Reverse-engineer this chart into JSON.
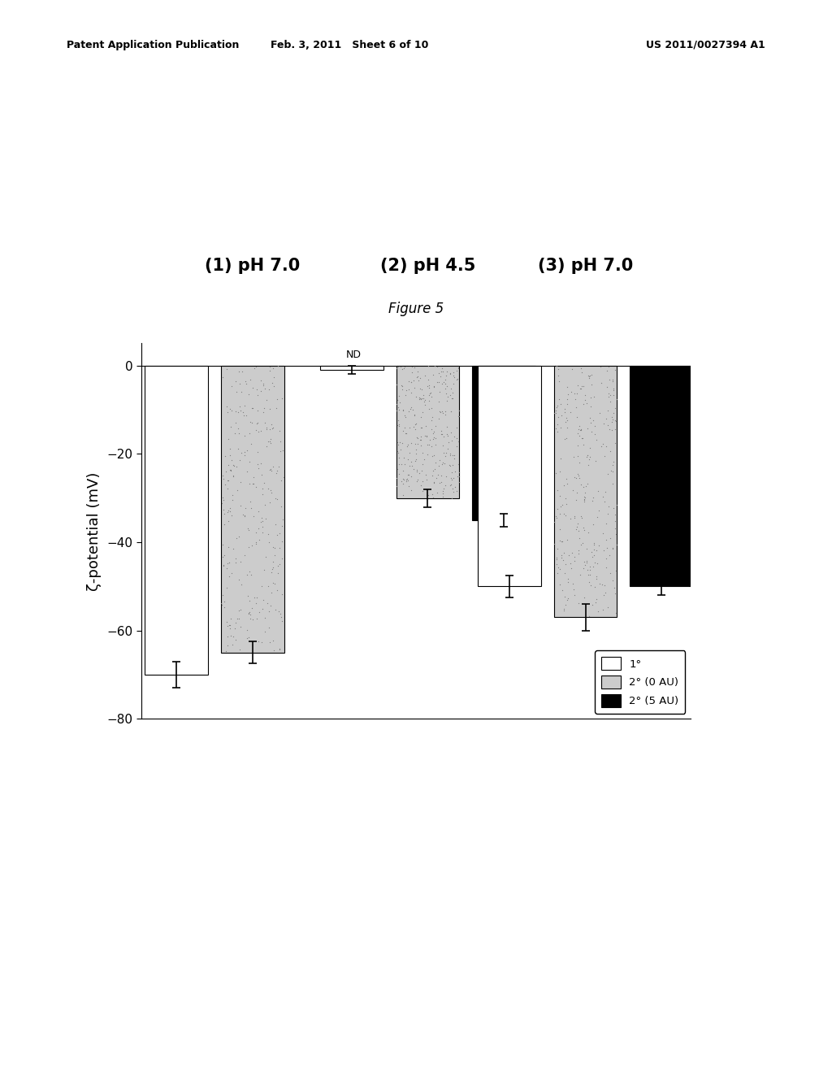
{
  "header_left": "Patent Application Publication",
  "header_mid": "Feb. 3, 2011   Sheet 6 of 10",
  "header_right": "US 2011/0027394 A1",
  "figure_title": "Figure 5",
  "group_labels": [
    "(1) pH 7.0",
    "(2) pH 4.5",
    "(3) pH 7.0"
  ],
  "series_labels": [
    "1°",
    "2° (0 AU)",
    "2° (5 AU)"
  ],
  "values": [
    [
      -70.0,
      -65.0,
      null
    ],
    [
      -1.0,
      -30.0,
      -35.0
    ],
    [
      -50.0,
      -57.0,
      -50.0
    ]
  ],
  "errors": [
    [
      3.0,
      2.5,
      null
    ],
    [
      1.0,
      2.0,
      1.5
    ],
    [
      2.5,
      3.0,
      2.0
    ]
  ],
  "nd_label": "ND",
  "ylabel": "ζ-potential (mV)",
  "ylim": [
    -80,
    5
  ],
  "yticks": [
    0,
    -20,
    -40,
    -60,
    -80
  ],
  "bar_colors": [
    "white",
    "#cccccc",
    "black"
  ],
  "bar_edge_colors": [
    "black",
    "black",
    "black"
  ],
  "bar_width": 0.12,
  "background_color": "white",
  "title_fontsize": 12,
  "label_fontsize": 13,
  "tick_fontsize": 11,
  "group_label_fontsize": 15,
  "header_fontsize": 9
}
